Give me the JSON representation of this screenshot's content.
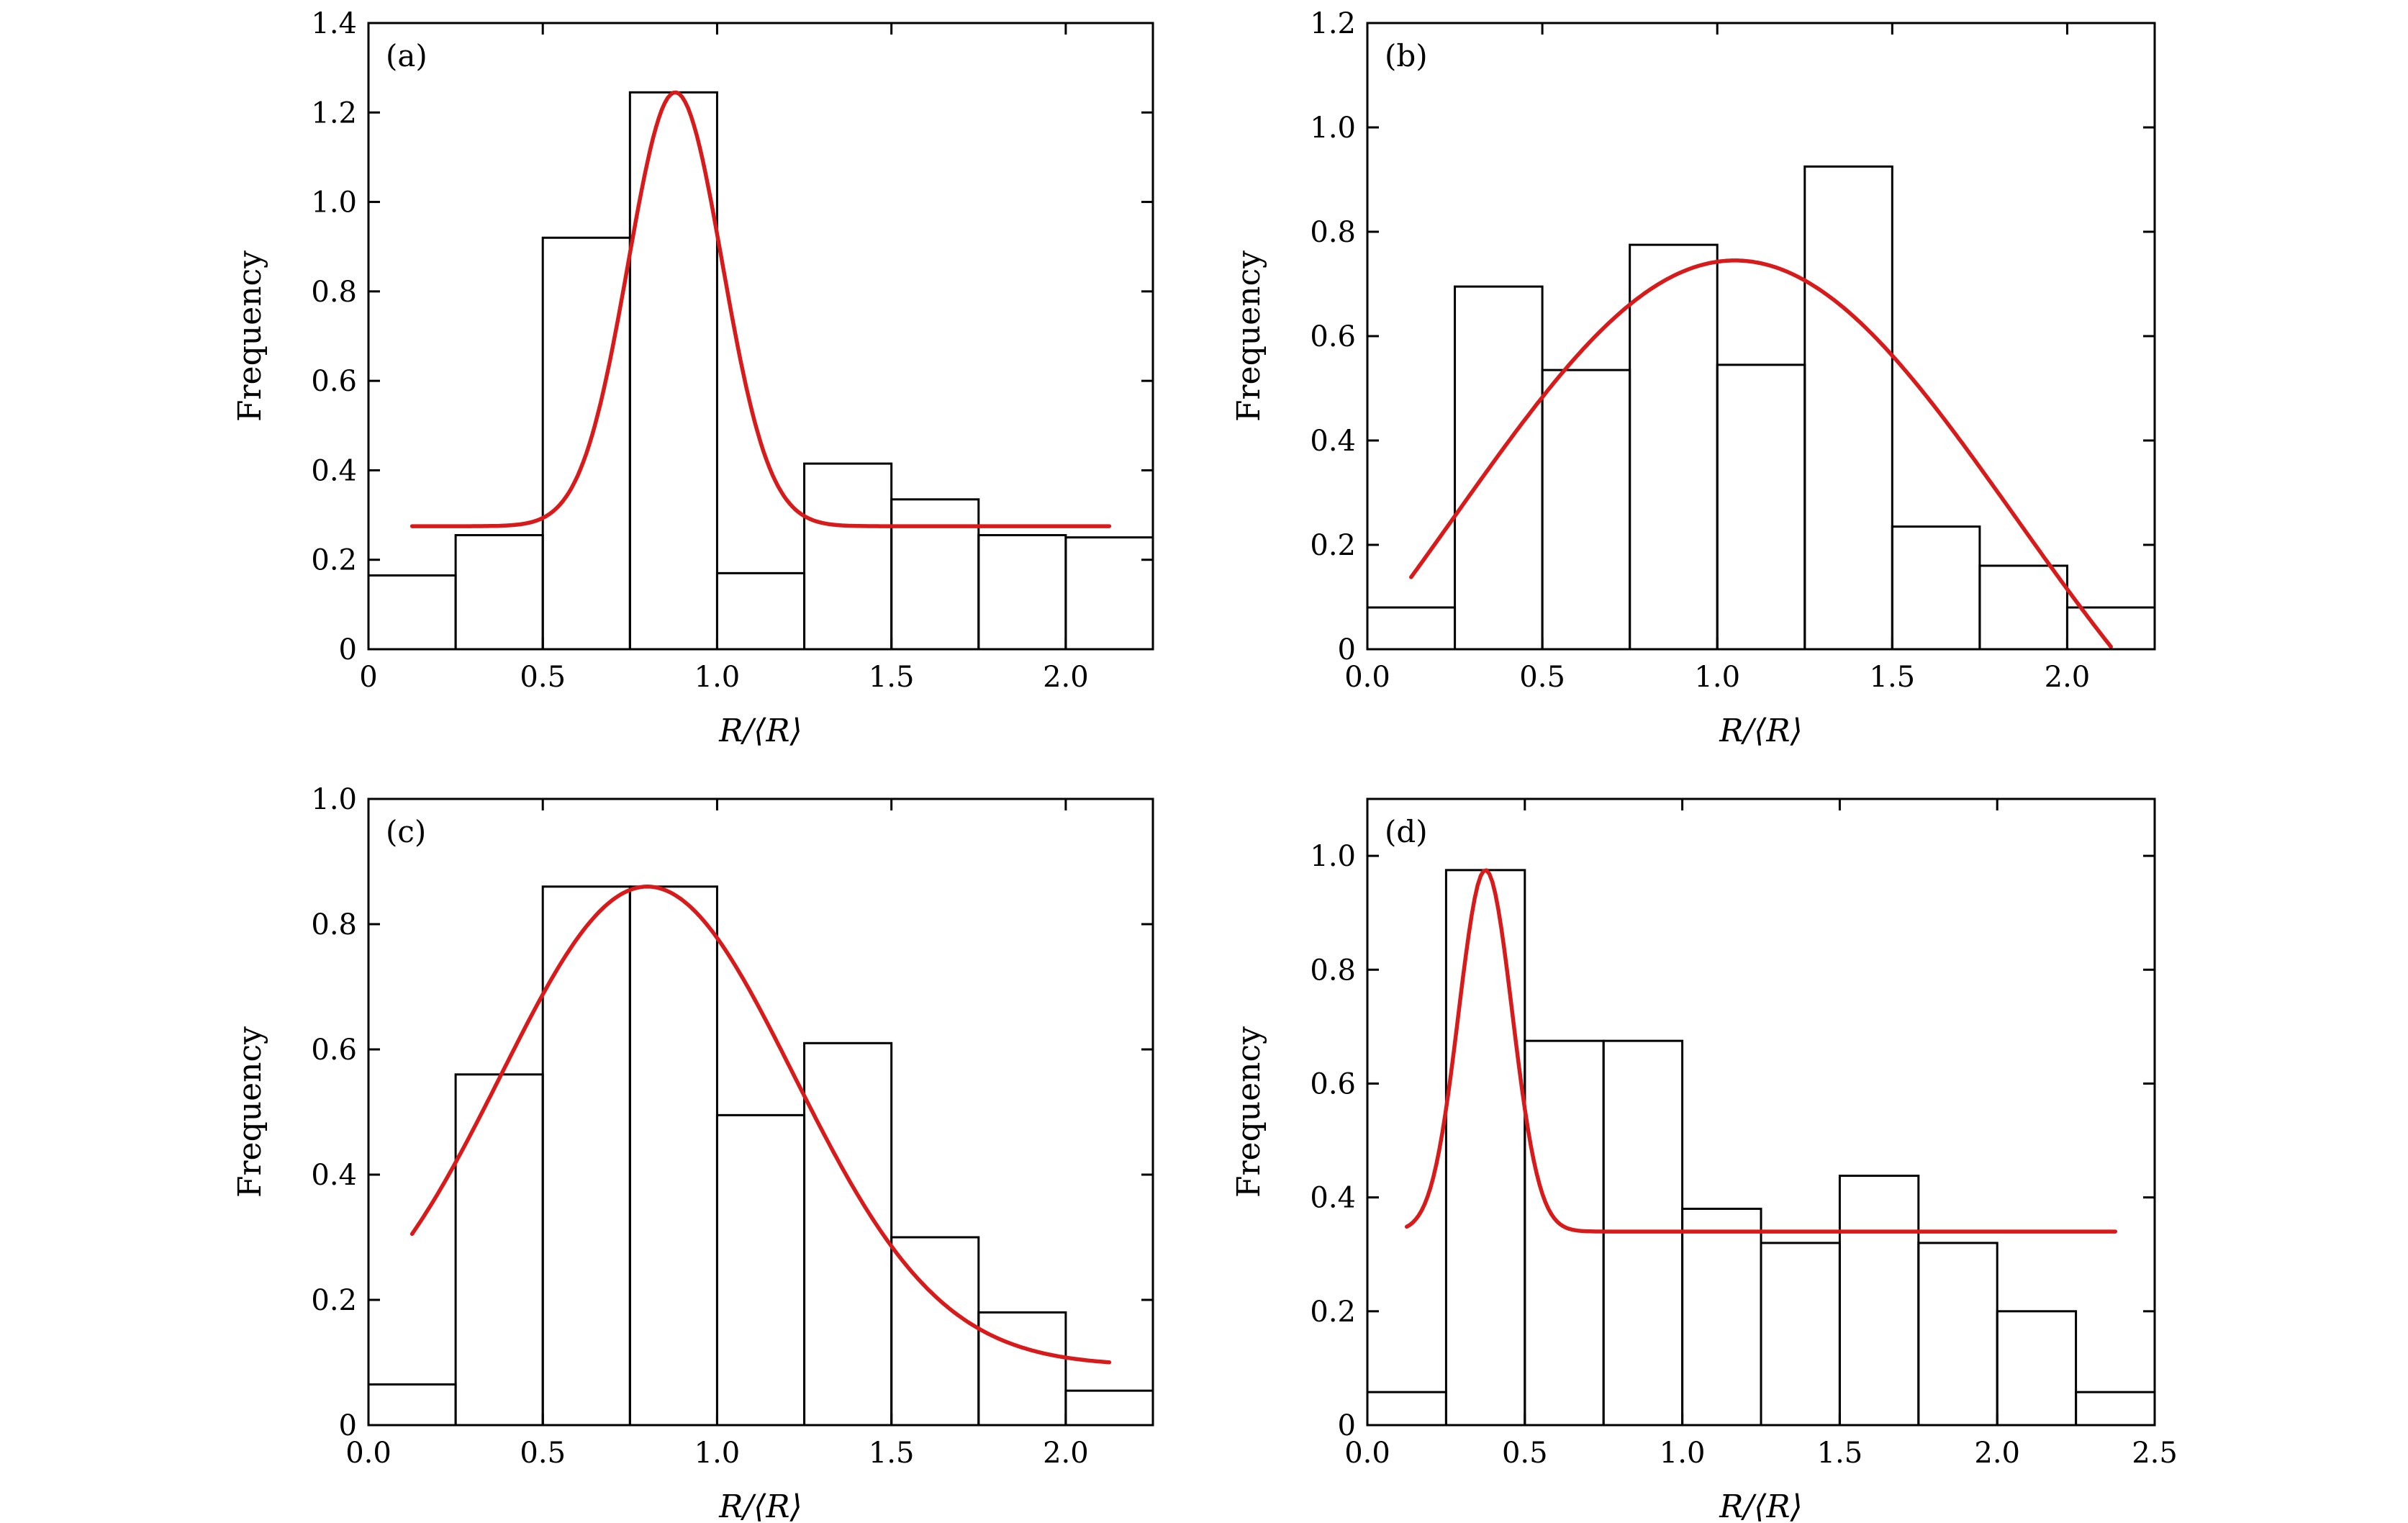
{
  "chart_data": [
    {
      "type": "bar",
      "panel_label": "(a)",
      "xlabel": "R/⟨R⟩",
      "ylabel": "Frequency",
      "xlim": [
        0,
        2.25
      ],
      "ylim": [
        0,
        1.4
      ],
      "xticks": [
        0,
        0.5,
        1.0,
        1.5,
        2.0
      ],
      "xtick_labels": [
        "0",
        "0.5",
        "1.0",
        "1.5",
        "2.0"
      ],
      "yticks": [
        0,
        0.2,
        0.4,
        0.6,
        0.8,
        1.0,
        1.2,
        1.4
      ],
      "ytick_labels": [
        "0",
        "0.2",
        "0.4",
        "0.6",
        "0.8",
        "1.0",
        "1.2",
        "1.4"
      ],
      "bin_edges": [
        0,
        0.25,
        0.5,
        0.75,
        1.0,
        1.25,
        1.5,
        1.75,
        2.0,
        2.25
      ],
      "values": [
        0.165,
        0.255,
        0.92,
        1.245,
        0.17,
        0.415,
        0.335,
        0.255,
        0.25
      ],
      "fit": {
        "kind": "gaussian",
        "baseline": 0.275,
        "amplitude": 0.97,
        "center": 0.88,
        "sigma": 0.135,
        "x_range": [
          0.125,
          2.125
        ]
      }
    },
    {
      "type": "bar",
      "panel_label": "(b)",
      "xlabel": "R/⟨R⟩",
      "ylabel": "Frequency",
      "xlim": [
        0,
        2.25
      ],
      "ylim": [
        0,
        1.2
      ],
      "xticks": [
        0,
        0.5,
        1.0,
        1.5,
        2.0
      ],
      "xtick_labels": [
        "0.0",
        "0.5",
        "1.0",
        "1.5",
        "2.0"
      ],
      "yticks": [
        0,
        0.2,
        0.4,
        0.6,
        0.8,
        1.0,
        1.2
      ],
      "ytick_labels": [
        "0",
        "0.2",
        "0.4",
        "0.6",
        "0.8",
        "1.0",
        "1.2"
      ],
      "bin_edges": [
        0,
        0.25,
        0.5,
        0.75,
        1.0,
        1.25,
        1.5,
        1.75,
        2.0,
        2.25
      ],
      "values": [
        0.08,
        0.695,
        0.535,
        0.775,
        0.545,
        0.925,
        0.235,
        0.16,
        0.08
      ],
      "fit": {
        "kind": "gaussian",
        "baseline": -0.5,
        "amplitude": 1.245,
        "center": 1.05,
        "sigma": 0.8,
        "x_range": [
          0.125,
          2.125
        ]
      }
    },
    {
      "type": "bar",
      "panel_label": "(c)",
      "xlabel": "R/⟨R⟩",
      "ylabel": "Frequency",
      "xlim": [
        0,
        2.25
      ],
      "ylim": [
        0,
        1.0
      ],
      "xticks": [
        0,
        0.5,
        1.0,
        1.5,
        2.0
      ],
      "xtick_labels": [
        "0.0",
        "0.5",
        "1.0",
        "1.5",
        "2.0"
      ],
      "yticks": [
        0,
        0.2,
        0.4,
        0.6,
        0.8,
        1.0
      ],
      "ytick_labels": [
        "0",
        "0.2",
        "0.4",
        "0.6",
        "0.8",
        "1.0"
      ],
      "bin_edges": [
        0,
        0.25,
        0.5,
        0.75,
        1.0,
        1.25,
        1.5,
        1.75,
        2.0,
        2.25
      ],
      "values": [
        0.065,
        0.56,
        0.86,
        0.86,
        0.495,
        0.61,
        0.3,
        0.18,
        0.055
      ],
      "fit": {
        "kind": "gaussian",
        "baseline": 0.095,
        "amplitude": 0.765,
        "center": 0.8,
        "sigma": 0.42,
        "x_range": [
          0.125,
          2.125
        ]
      }
    },
    {
      "type": "bar",
      "panel_label": "(d)",
      "xlabel": "R/⟨R⟩",
      "ylabel": "Frequency",
      "xlim": [
        0,
        2.5
      ],
      "ylim": [
        0,
        1.1
      ],
      "xticks": [
        0,
        0.5,
        1.0,
        1.5,
        2.0,
        2.5
      ],
      "xtick_labels": [
        "0.0",
        "0.5",
        "1.0",
        "1.5",
        "2.0",
        "2.5"
      ],
      "yticks": [
        0,
        0.2,
        0.4,
        0.6,
        0.8,
        1.0
      ],
      "ytick_labels": [
        "0",
        "0.2",
        "0.4",
        "0.6",
        "0.8",
        "1.0"
      ],
      "bin_edges": [
        0,
        0.25,
        0.5,
        0.75,
        1.0,
        1.25,
        1.5,
        1.75,
        2.0,
        2.25,
        2.5
      ],
      "values": [
        0.058,
        0.975,
        0.675,
        0.675,
        0.38,
        0.32,
        0.438,
        0.32,
        0.2,
        0.058
      ],
      "fit": {
        "kind": "gaussian",
        "baseline": 0.34,
        "amplitude": 0.635,
        "center": 0.375,
        "sigma": 0.085,
        "x_range": [
          0.125,
          2.375
        ]
      }
    }
  ]
}
